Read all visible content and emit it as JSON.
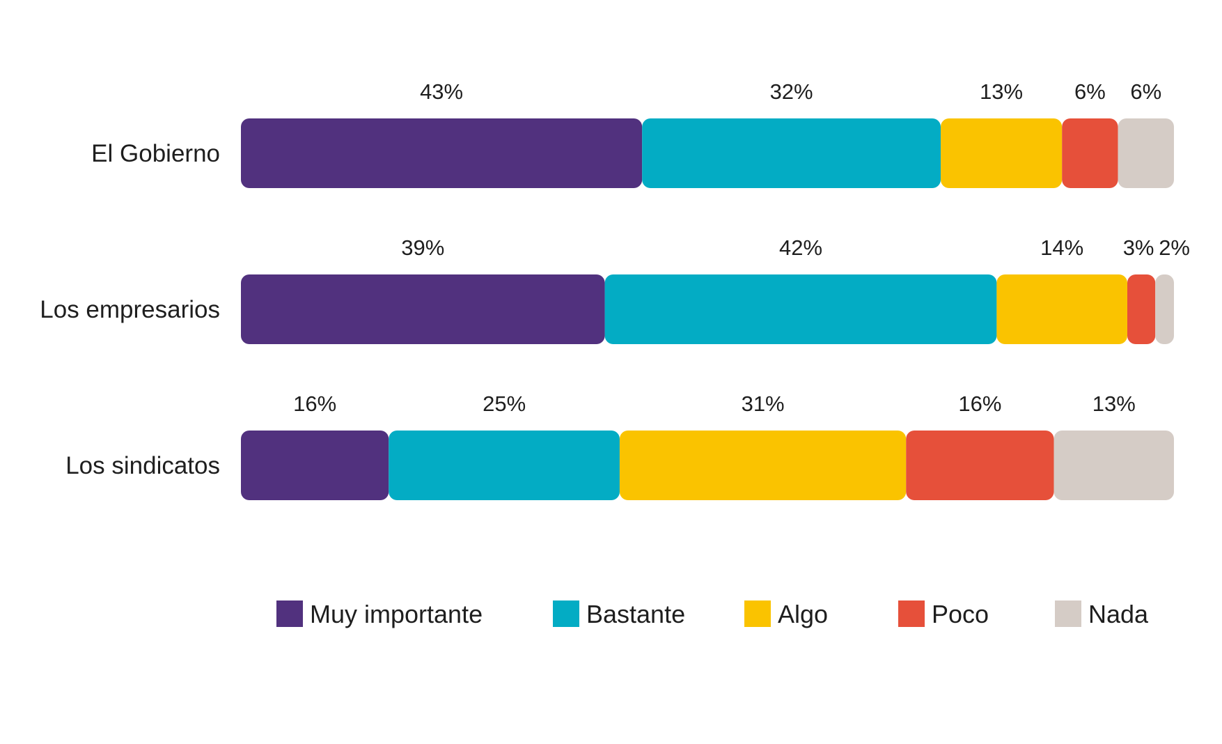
{
  "chart_data": {
    "type": "bar",
    "orientation": "horizontal",
    "stacked": true,
    "normalized_percent": true,
    "title": "",
    "xlabel": "",
    "ylabel": "",
    "categories": [
      "El Gobierno",
      "Los empresarios",
      "Los sindicatos"
    ],
    "series": [
      {
        "name": "Muy importante",
        "color": "#51317e",
        "values": [
          43,
          39,
          16
        ]
      },
      {
        "name": "Bastante",
        "color": "#03acc4",
        "values": [
          32,
          42,
          25
        ]
      },
      {
        "name": "Algo",
        "color": "#fac300",
        "values": [
          13,
          14,
          31
        ]
      },
      {
        "name": "Poco",
        "color": "#e6503a",
        "values": [
          6,
          3,
          16
        ]
      },
      {
        "name": "Nada",
        "color": "#d5ccc6",
        "values": [
          6,
          2,
          13
        ]
      }
    ],
    "value_suffix": "%",
    "grid": false,
    "legend_position": "bottom"
  }
}
